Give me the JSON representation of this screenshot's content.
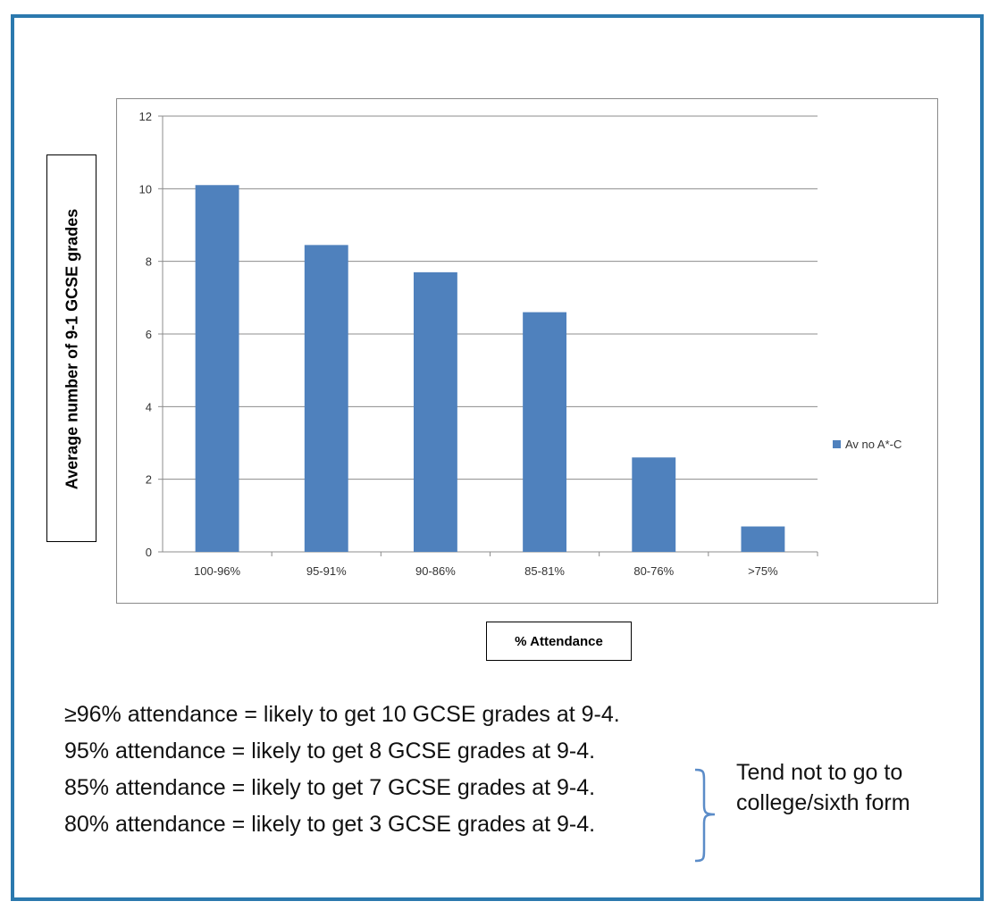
{
  "chart_data": {
    "type": "bar",
    "categories": [
      "100-96%",
      "95-91%",
      "90-86%",
      "85-81%",
      "80-76%",
      ">75%"
    ],
    "series": [
      {
        "name": "Av no A*-C",
        "values": [
          10.1,
          8.45,
          7.7,
          6.6,
          2.6,
          0.7
        ]
      }
    ],
    "ylabel": "Average number of 9-1 GCSE grades",
    "xlabel": "% Attendance",
    "ylim": [
      0,
      12
    ],
    "yticks": [
      0,
      2,
      4,
      6,
      8,
      10,
      12
    ],
    "grid": true,
    "legend": "right",
    "bar_color": "#4f81bd"
  },
  "notes": {
    "lines": [
      "≥96% attendance = likely to get 10 GCSE grades at 9-4.",
      "95% attendance = likely to get 8 GCSE grades at 9-4.",
      "85% attendance = likely to get 7 GCSE grades at 9-4.",
      "80% attendance = likely to get 3 GCSE grades at 9-4."
    ],
    "side_note": "Tend not to go to college/sixth form"
  }
}
